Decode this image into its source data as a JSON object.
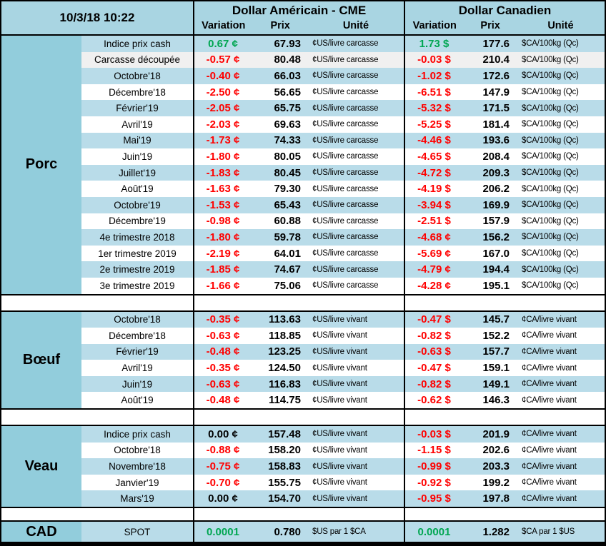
{
  "window": {
    "datetime": "10/3/18 10:22"
  },
  "colors": {
    "positive": "#00A651",
    "negative": "#FF0000",
    "sidebar_teal": "#92CDDC",
    "row_blue": "#B9DCE9",
    "row_gray": "#F0F0F0",
    "header_blue": "#A9D5E2"
  },
  "header": {
    "us_title": "Dollar Américain - CME",
    "ca_title": "Dollar Canadien",
    "col_variation": "Variation",
    "col_prix": "Prix",
    "col_unite": "Unité"
  },
  "sections": [
    {
      "id": "porc",
      "name": "Porc",
      "rows": [
        {
          "label": "Indice prix cash",
          "bg": "blue",
          "us_var": "0.67 ¢",
          "us_var_color": "green",
          "us_prix": "67.93",
          "us_unit": "¢US/livre carcasse",
          "ca_var": "1.73 $",
          "ca_var_color": "green",
          "ca_prix": "177.6",
          "ca_unit": "$CA/100kg (Qc)"
        },
        {
          "label": "Carcasse découpée",
          "bg": "gray",
          "us_var": "-0.57 ¢",
          "us_var_color": "red",
          "us_prix": "80.48",
          "us_unit": "¢US/livre carcasse",
          "ca_var": "-0.03 $",
          "ca_var_color": "red",
          "ca_prix": "210.4",
          "ca_unit": "$CA/100kg (Qc)"
        },
        {
          "label": "Octobre'18",
          "bg": "blue",
          "us_var": "-0.40 ¢",
          "us_var_color": "red",
          "us_prix": "66.03",
          "us_unit": "¢US/livre carcasse",
          "ca_var": "-1.02 $",
          "ca_var_color": "red",
          "ca_prix": "172.6",
          "ca_unit": "$CA/100kg (Qc)"
        },
        {
          "label": "Décembre'18",
          "bg": "white",
          "us_var": "-2.50 ¢",
          "us_var_color": "red",
          "us_prix": "56.65",
          "us_unit": "¢US/livre carcasse",
          "ca_var": "-6.51 $",
          "ca_var_color": "red",
          "ca_prix": "147.9",
          "ca_unit": "$CA/100kg (Qc)"
        },
        {
          "label": "Février'19",
          "bg": "blue",
          "us_var": "-2.05 ¢",
          "us_var_color": "red",
          "us_prix": "65.75",
          "us_unit": "¢US/livre carcasse",
          "ca_var": "-5.32 $",
          "ca_var_color": "red",
          "ca_prix": "171.5",
          "ca_unit": "$CA/100kg (Qc)"
        },
        {
          "label": "Avril'19",
          "bg": "white",
          "us_var": "-2.03 ¢",
          "us_var_color": "red",
          "us_prix": "69.63",
          "us_unit": "¢US/livre carcasse",
          "ca_var": "-5.25 $",
          "ca_var_color": "red",
          "ca_prix": "181.4",
          "ca_unit": "$CA/100kg (Qc)"
        },
        {
          "label": "Mai'19",
          "bg": "blue",
          "us_var": "-1.73 ¢",
          "us_var_color": "red",
          "us_prix": "74.33",
          "us_unit": "¢US/livre carcasse",
          "ca_var": "-4.46 $",
          "ca_var_color": "red",
          "ca_prix": "193.6",
          "ca_unit": "$CA/100kg (Qc)"
        },
        {
          "label": "Juin'19",
          "bg": "white",
          "us_var": "-1.80 ¢",
          "us_var_color": "red",
          "us_prix": "80.05",
          "us_unit": "¢US/livre carcasse",
          "ca_var": "-4.65 $",
          "ca_var_color": "red",
          "ca_prix": "208.4",
          "ca_unit": "$CA/100kg (Qc)"
        },
        {
          "label": "Juillet'19",
          "bg": "blue",
          "us_var": "-1.83 ¢",
          "us_var_color": "red",
          "us_prix": "80.45",
          "us_unit": "¢US/livre carcasse",
          "ca_var": "-4.72 $",
          "ca_var_color": "red",
          "ca_prix": "209.3",
          "ca_unit": "$CA/100kg (Qc)"
        },
        {
          "label": "Août'19",
          "bg": "white",
          "us_var": "-1.63 ¢",
          "us_var_color": "red",
          "us_prix": "79.30",
          "us_unit": "¢US/livre carcasse",
          "ca_var": "-4.19 $",
          "ca_var_color": "red",
          "ca_prix": "206.2",
          "ca_unit": "$CA/100kg (Qc)"
        },
        {
          "label": "Octobre'19",
          "bg": "blue",
          "us_var": "-1.53 ¢",
          "us_var_color": "red",
          "us_prix": "65.43",
          "us_unit": "¢US/livre carcasse",
          "ca_var": "-3.94 $",
          "ca_var_color": "red",
          "ca_prix": "169.9",
          "ca_unit": "$CA/100kg (Qc)"
        },
        {
          "label": "Décembre'19",
          "bg": "white",
          "us_var": "-0.98 ¢",
          "us_var_color": "red",
          "us_prix": "60.88",
          "us_unit": "¢US/livre carcasse",
          "ca_var": "-2.51 $",
          "ca_var_color": "red",
          "ca_prix": "157.9",
          "ca_unit": "$CA/100kg (Qc)"
        },
        {
          "label": "4e trimestre 2018",
          "bg": "blue",
          "us_var": "-1.80 ¢",
          "us_var_color": "red",
          "us_prix": "59.78",
          "us_unit": "¢US/livre carcasse",
          "ca_var": "-4.68 ¢",
          "ca_var_color": "red",
          "ca_prix": "156.2",
          "ca_unit": "$CA/100kg (Qc)"
        },
        {
          "label": "1er trimestre 2019",
          "bg": "white",
          "us_var": "-2.19 ¢",
          "us_var_color": "red",
          "us_prix": "64.01",
          "us_unit": "¢US/livre carcasse",
          "ca_var": "-5.69 ¢",
          "ca_var_color": "red",
          "ca_prix": "167.0",
          "ca_unit": "$CA/100kg (Qc)"
        },
        {
          "label": "2e trimestre 2019",
          "bg": "blue",
          "us_var": "-1.85 ¢",
          "us_var_color": "red",
          "us_prix": "74.67",
          "us_unit": "¢US/livre carcasse",
          "ca_var": "-4.79 ¢",
          "ca_var_color": "red",
          "ca_prix": "194.4",
          "ca_unit": "$CA/100kg (Qc)"
        },
        {
          "label": "3e trimestre 2019",
          "bg": "white",
          "us_var": "-1.66 ¢",
          "us_var_color": "red",
          "us_prix": "75.06",
          "us_unit": "¢US/livre carcasse",
          "ca_var": "-4.28 ¢",
          "ca_var_color": "red",
          "ca_prix": "195.1",
          "ca_unit": "$CA/100kg (Qc)"
        }
      ]
    },
    {
      "id": "boeuf",
      "name": "Bœuf",
      "rows": [
        {
          "label": "Octobre'18",
          "bg": "blue",
          "us_var": "-0.35 ¢",
          "us_var_color": "red",
          "us_prix": "113.63",
          "us_unit": "¢US/livre vivant",
          "ca_var": "-0.47 $",
          "ca_var_color": "red",
          "ca_prix": "145.7",
          "ca_unit": "¢CA/livre vivant"
        },
        {
          "label": "Décembre'18",
          "bg": "white",
          "us_var": "-0.63 ¢",
          "us_var_color": "red",
          "us_prix": "118.85",
          "us_unit": "¢US/livre vivant",
          "ca_var": "-0.82 $",
          "ca_var_color": "red",
          "ca_prix": "152.2",
          "ca_unit": "¢CA/livre vivant"
        },
        {
          "label": "Février'19",
          "bg": "blue",
          "us_var": "-0.48 ¢",
          "us_var_color": "red",
          "us_prix": "123.25",
          "us_unit": "¢US/livre vivant",
          "ca_var": "-0.63 $",
          "ca_var_color": "red",
          "ca_prix": "157.7",
          "ca_unit": "¢CA/livre vivant"
        },
        {
          "label": "Avril'19",
          "bg": "white",
          "us_var": "-0.35 ¢",
          "us_var_color": "red",
          "us_prix": "124.50",
          "us_unit": "¢US/livre vivant",
          "ca_var": "-0.47 $",
          "ca_var_color": "red",
          "ca_prix": "159.1",
          "ca_unit": "¢CA/livre vivant"
        },
        {
          "label": "Juin'19",
          "bg": "blue",
          "us_var": "-0.63 ¢",
          "us_var_color": "red",
          "us_prix": "116.83",
          "us_unit": "¢US/livre vivant",
          "ca_var": "-0.82 $",
          "ca_var_color": "red",
          "ca_prix": "149.1",
          "ca_unit": "¢CA/livre vivant"
        },
        {
          "label": "Août'19",
          "bg": "white",
          "us_var": "-0.48 ¢",
          "us_var_color": "red",
          "us_prix": "114.75",
          "us_unit": "¢US/livre vivant",
          "ca_var": "-0.62 $",
          "ca_var_color": "red",
          "ca_prix": "146.3",
          "ca_unit": "¢CA/livre vivant"
        }
      ]
    },
    {
      "id": "veau",
      "name": "Veau",
      "rows": [
        {
          "label": "Indice prix cash",
          "bg": "blue",
          "us_var": "0.00 ¢",
          "us_var_color": "black",
          "us_prix": "157.48",
          "us_unit": "¢US/livre vivant",
          "ca_var": "-0.03 $",
          "ca_var_color": "red",
          "ca_prix": "201.9",
          "ca_unit": "¢CA/livre vivant"
        },
        {
          "label": "Octobre'18",
          "bg": "white",
          "us_var": "-0.88 ¢",
          "us_var_color": "red",
          "us_prix": "158.20",
          "us_unit": "¢US/livre vivant",
          "ca_var": "-1.15 $",
          "ca_var_color": "red",
          "ca_prix": "202.6",
          "ca_unit": "¢CA/livre vivant"
        },
        {
          "label": "Novembre'18",
          "bg": "blue",
          "us_var": "-0.75 ¢",
          "us_var_color": "red",
          "us_prix": "158.83",
          "us_unit": "¢US/livre vivant",
          "ca_var": "-0.99 $",
          "ca_var_color": "red",
          "ca_prix": "203.3",
          "ca_unit": "¢CA/livre vivant"
        },
        {
          "label": "Janvier'19",
          "bg": "white",
          "us_var": "-0.70 ¢",
          "us_var_color": "red",
          "us_prix": "155.75",
          "us_unit": "¢US/livre vivant",
          "ca_var": "-0.92 $",
          "ca_var_color": "red",
          "ca_prix": "199.2",
          "ca_unit": "¢CA/livre vivant"
        },
        {
          "label": "Mars'19",
          "bg": "blue",
          "us_var": "0.00 ¢",
          "us_var_color": "black",
          "us_prix": "154.70",
          "us_unit": "¢US/livre vivant",
          "ca_var": "-0.95 $",
          "ca_var_color": "red",
          "ca_prix": "197.8",
          "ca_unit": "¢CA/livre vivant"
        }
      ]
    },
    {
      "id": "cad",
      "name": "CAD",
      "rows": [
        {
          "label": "SPOT",
          "bg": "blue",
          "us_var": "0.0001",
          "us_var_color": "green",
          "us_prix": "0.780",
          "us_unit": "$US par 1 $CA",
          "ca_var": "0.0001",
          "ca_var_color": "green",
          "ca_prix": "1.282",
          "ca_unit": "$CA par 1 $US"
        }
      ]
    }
  ]
}
